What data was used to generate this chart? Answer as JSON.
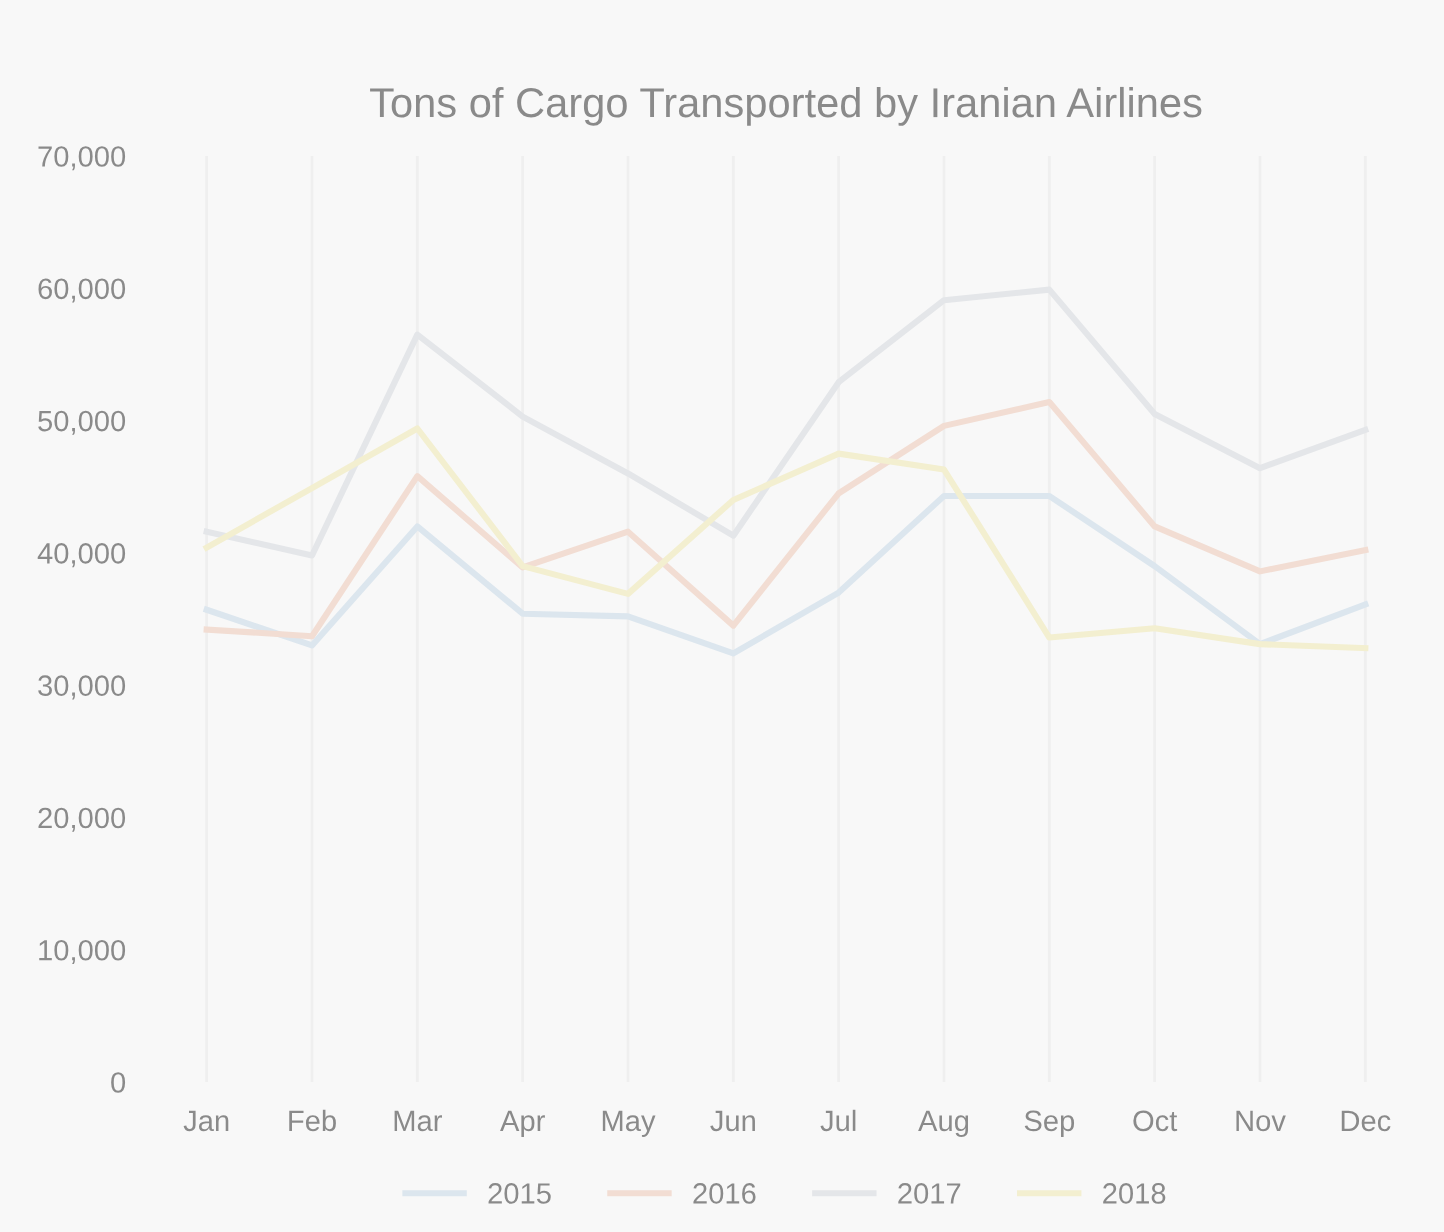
{
  "chart_data": {
    "type": "line",
    "title": "Tons of Cargo Transported by Iranian Airlines",
    "categories": [
      "Jan",
      "Feb",
      "Mar",
      "Apr",
      "May",
      "Jun",
      "Jul",
      "Aug",
      "Sep",
      "Oct",
      "Nov",
      "Dec"
    ],
    "series": [
      {
        "name": "2015",
        "color": "#dce6ee",
        "values": [
          35700,
          33000,
          42000,
          35400,
          35200,
          32400,
          37000,
          44300,
          44300,
          39000,
          33100,
          36100
        ]
      },
      {
        "name": "2016",
        "color": "#f2ddd3",
        "values": [
          34200,
          33700,
          45800,
          38900,
          41600,
          34500,
          44500,
          49600,
          51400,
          42000,
          38600,
          40200
        ]
      },
      {
        "name": "2017",
        "color": "#e4e6e9",
        "values": [
          41600,
          39800,
          56500,
          50300,
          46000,
          41300,
          52900,
          59100,
          59900,
          50500,
          46400,
          49300
        ]
      },
      {
        "name": "2018",
        "color": "#f3efd0",
        "values": [
          40400,
          44900,
          49400,
          39000,
          36900,
          44000,
          47500,
          46300,
          33600,
          34300,
          33100,
          32800
        ]
      }
    ],
    "ylim": [
      0,
      70000
    ],
    "yticks": [
      {
        "value": 0,
        "label": "0"
      },
      {
        "value": 10000,
        "label": "10,000"
      },
      {
        "value": 20000,
        "label": "20,000"
      },
      {
        "value": 30000,
        "label": "30,000"
      },
      {
        "value": 40000,
        "label": "40,000"
      },
      {
        "value": 50000,
        "label": "50,000"
      },
      {
        "value": 60000,
        "label": "60,000"
      },
      {
        "value": 70000,
        "label": "70,000"
      }
    ],
    "grid": "x",
    "legend": "bottom",
    "marker": "none",
    "line_style": "solid"
  }
}
